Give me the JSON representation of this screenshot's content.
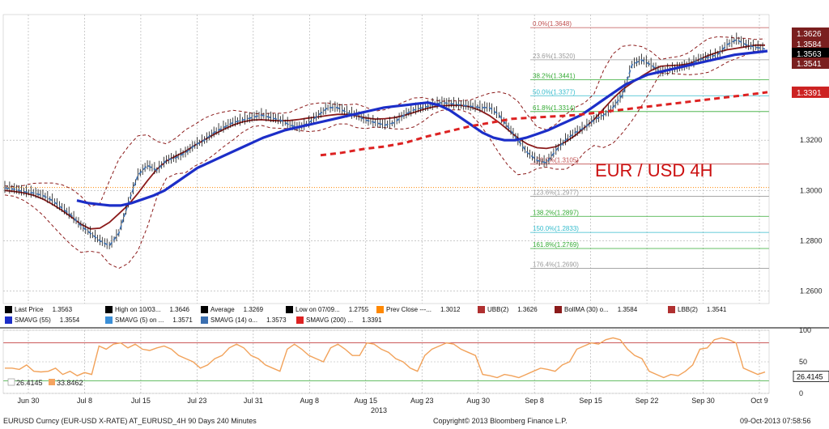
{
  "chart_data": {
    "type": "line",
    "title": "EUR / USD 4H",
    "x_ticks": [
      "Jun 30",
      "Jul 8",
      "Jul 15",
      "Jul 23",
      "Jul 31",
      "Aug 8",
      "Aug 15",
      "Aug 23",
      "Aug 30",
      "Sep 8",
      "Sep 15",
      "Sep 22",
      "Sep 30",
      "Oct 9"
    ],
    "year_label": "2013",
    "ylim": [
      1.255,
      1.37
    ],
    "y_ticks": [
      "1.3200",
      "1.3000",
      "1.2800",
      "1.2600"
    ],
    "price_close": [
      1.301,
      1.3005,
      1.2995,
      1.299,
      1.298,
      1.296,
      1.293,
      1.29,
      1.286,
      1.283,
      1.28,
      1.278,
      1.283,
      1.295,
      1.306,
      1.31,
      1.308,
      1.312,
      1.313,
      1.315,
      1.318,
      1.32,
      1.323,
      1.325,
      1.327,
      1.328,
      1.329,
      1.33,
      1.329,
      1.328,
      1.326,
      1.325,
      1.327,
      1.33,
      1.333,
      1.333,
      1.331,
      1.33,
      1.328,
      1.327,
      1.326,
      1.327,
      1.33,
      1.332,
      1.333,
      1.334,
      1.335,
      1.3345,
      1.334,
      1.3335,
      1.333,
      1.333,
      1.33,
      1.325,
      1.32,
      1.315,
      1.312,
      1.311,
      1.316,
      1.32,
      1.323,
      1.325,
      1.328,
      1.33,
      1.333,
      1.338,
      1.35,
      1.352,
      1.35,
      1.347,
      1.348,
      1.349,
      1.35,
      1.352,
      1.353,
      1.354,
      1.358,
      1.36,
      1.358,
      1.357,
      1.3563
    ],
    "series": [
      {
        "name": "SMAVG (55)",
        "values": [
          1.296,
          1.295,
          1.2945,
          1.294,
          1.294,
          1.295,
          1.2965,
          1.298,
          1.3,
          1.303,
          1.306,
          1.309,
          1.311,
          1.313,
          1.315,
          1.317,
          1.319,
          1.321,
          1.3225,
          1.324,
          1.325,
          1.326,
          1.327,
          1.328,
          1.329,
          1.33,
          1.331,
          1.332,
          1.333,
          1.3335,
          1.334,
          1.3345,
          1.335,
          1.334,
          1.332,
          1.329,
          1.326,
          1.323,
          1.321,
          1.32,
          1.32,
          1.321,
          1.3225,
          1.324,
          1.326,
          1.328,
          1.33,
          1.333,
          1.336,
          1.339,
          1.342,
          1.344,
          1.346,
          1.347,
          1.348,
          1.349,
          1.35,
          1.351,
          1.352,
          1.353,
          1.354,
          1.3545,
          1.355,
          1.3555
        ]
      },
      {
        "name": "SMAVG (200)",
        "values": [
          1.314,
          1.315,
          1.3165,
          1.3175,
          1.319,
          1.3215,
          1.3235,
          1.3255,
          1.327,
          1.3285,
          1.329,
          1.3295,
          1.33,
          1.331,
          1.332,
          1.333,
          1.334,
          1.335,
          1.336,
          1.337,
          1.338,
          1.3391
        ]
      },
      {
        "name": "RSI",
        "values": [
          40,
          40,
          38,
          45,
          35,
          34,
          35,
          40,
          30,
          35,
          28,
          33,
          30,
          75,
          70,
          78,
          80,
          72,
          78,
          70,
          68,
          72,
          75,
          70,
          60,
          55,
          50,
          40,
          45,
          55,
          60,
          72,
          78,
          72,
          60,
          55,
          45,
          40,
          35,
          70,
          78,
          70,
          60,
          55,
          50,
          72,
          78,
          70,
          60,
          60,
          80,
          78,
          70,
          65,
          55,
          50,
          40,
          35,
          60,
          70,
          75,
          80,
          78,
          70,
          65,
          60,
          30,
          28,
          25,
          30,
          28,
          25,
          30,
          35,
          40,
          38,
          35,
          45,
          50,
          70,
          75,
          80,
          78,
          85,
          88,
          85,
          70,
          60,
          55,
          35,
          30,
          25,
          30,
          28,
          35,
          45,
          70,
          72,
          85,
          88,
          85,
          80,
          40,
          35,
          30,
          33.8
        ]
      }
    ],
    "fib_levels": [
      {
        "label": "0.0%(1.3648)",
        "value": 1.3648,
        "color": "#c05050"
      },
      {
        "label": "23.6%(1.3520)",
        "value": 1.352,
        "color": "#999999"
      },
      {
        "label": "38.2%(1.3441)",
        "value": 1.3441,
        "color": "#33aa33"
      },
      {
        "label": "50.0%(1.3377)",
        "value": 1.3377,
        "color": "#33bbcc"
      },
      {
        "label": "61.8%(1.3314)",
        "value": 1.3314,
        "color": "#33aa33"
      },
      {
        "label": "100.0%(1.3105)",
        "value": 1.3105,
        "color": "#c05050"
      },
      {
        "label": "123.6%(1.2977)",
        "value": 1.2977,
        "color": "#999999"
      },
      {
        "label": "138.2%(1.2897)",
        "value": 1.2897,
        "color": "#33aa33"
      },
      {
        "label": "150.0%(1.2833)",
        "value": 1.2833,
        "color": "#33bbcc"
      },
      {
        "label": "161.8%(1.2769)",
        "value": 1.2769,
        "color": "#33aa33"
      },
      {
        "label": "176.4%(1.2690)",
        "value": 1.269,
        "color": "#999999"
      }
    ],
    "right_labels": [
      {
        "text": "1.3626",
        "value": 1.3626,
        "bg": "#7a1f1f"
      },
      {
        "text": "1.3584",
        "value": 1.3584,
        "bg": "#7a1f1f"
      },
      {
        "text": "1.3563",
        "value": 1.3563,
        "bg": "#000000"
      },
      {
        "text": "1.3541",
        "value": 1.3541,
        "bg": "#7a1f1f"
      },
      {
        "text": "1.3391",
        "value": 1.3391,
        "bg": "#cc2222"
      }
    ],
    "rsi_ylim": [
      0,
      100
    ],
    "rsi_ticks": [
      "100",
      "50",
      "0"
    ],
    "rsi_levels": [
      80,
      20
    ],
    "rsi_labels": [
      {
        "text": "26.4145",
        "value": 26.4145,
        "bg": "#ffffff"
      },
      {
        "text": "33.8462",
        "value": 33.8462,
        "bg": "#f4a460"
      }
    ],
    "grid": true
  },
  "legend": {
    "row1": [
      {
        "icon": "last-price",
        "text": "Last Price",
        "value": "1.3563",
        "color": "#000000"
      },
      {
        "icon": "high",
        "text": "High on 10/03...",
        "value": "1.3646",
        "color": "#000000"
      },
      {
        "icon": "average",
        "text": "Average",
        "value": "1.3269",
        "color": "#000000"
      },
      {
        "icon": "low",
        "text": "Low on 07/09...",
        "value": "1.2755",
        "color": "#000000"
      },
      {
        "icon": "prev-close",
        "text": "Prev Close ---...",
        "value": "1.3012",
        "color": "#ff8800"
      },
      {
        "icon": "ubb",
        "text": "UBB(2)",
        "value": "1.3626",
        "color": "#b03030"
      },
      {
        "icon": "bollma",
        "text": "BollMA (30) o...",
        "value": "1.3584",
        "color": "#8b1a1a"
      },
      {
        "icon": "lbb",
        "text": "LBB(2)",
        "value": "1.3541",
        "color": "#b03030"
      }
    ],
    "row2": [
      {
        "icon": "smavg55",
        "text": "SMAVG (55)",
        "value": "1.3554",
        "color": "#1c2ec8"
      },
      {
        "icon": "smavg5",
        "text": "SMAVG (5) on ...",
        "value": "1.3571",
        "color": "#3b8fd8"
      },
      {
        "icon": "smavg14",
        "text": "SMAVG (14) o...",
        "value": "1.3573",
        "color": "#3b6fb0"
      },
      {
        "icon": "smavg200",
        "text": "SMAVG (200) ...",
        "value": "1.3391",
        "color": "#dd2222"
      }
    ]
  },
  "footer": {
    "left": "EURUSD Curncy (EUR-USD X-RATE) AT_EURUSD_4H 90 Days 240 Minutes",
    "center": "Copyright© 2013 Bloomberg Finance L.P.",
    "right": "09-Oct-2013 07:58:56"
  }
}
